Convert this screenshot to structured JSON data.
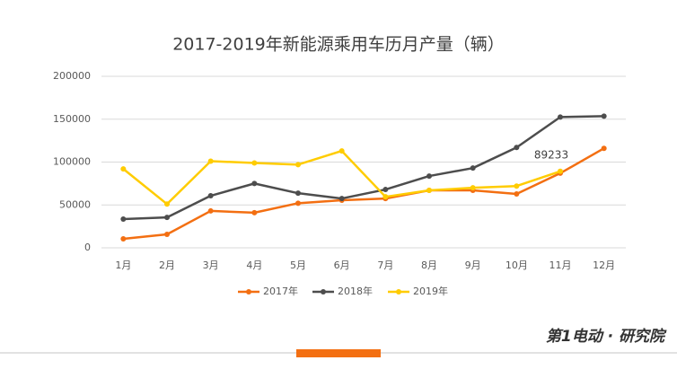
{
  "chart_data": {
    "type": "line",
    "title": "2017-2019年新能源乘用车历月产量（辆）",
    "categories": [
      "1月",
      "2月",
      "3月",
      "4月",
      "5月",
      "6月",
      "7月",
      "8月",
      "9月",
      "10月",
      "11月",
      "12月"
    ],
    "series": [
      {
        "name": "2017年",
        "color": "#f36f12",
        "values": [
          10500,
          15700,
          43000,
          41000,
          52000,
          55500,
          57500,
          67000,
          67000,
          62800,
          87000,
          116000
        ]
      },
      {
        "name": "2018年",
        "color": "#4d4d4d",
        "values": [
          33500,
          35500,
          60700,
          75000,
          63700,
          57500,
          68000,
          83700,
          93000,
          117000,
          152500,
          153500
        ]
      },
      {
        "name": "2019年",
        "color": "#ffcc00",
        "values": [
          92000,
          51000,
          101000,
          99000,
          97000,
          113000,
          59500,
          67000,
          70000,
          72000,
          89233,
          null
        ]
      }
    ],
    "ylim": [
      0,
      200000
    ],
    "yticks": [
      0,
      50000,
      100000,
      150000,
      200000
    ],
    "grid": true,
    "legend": "bottom",
    "footer": {
      "brand": "第1电动 · 研究院"
    }
  }
}
